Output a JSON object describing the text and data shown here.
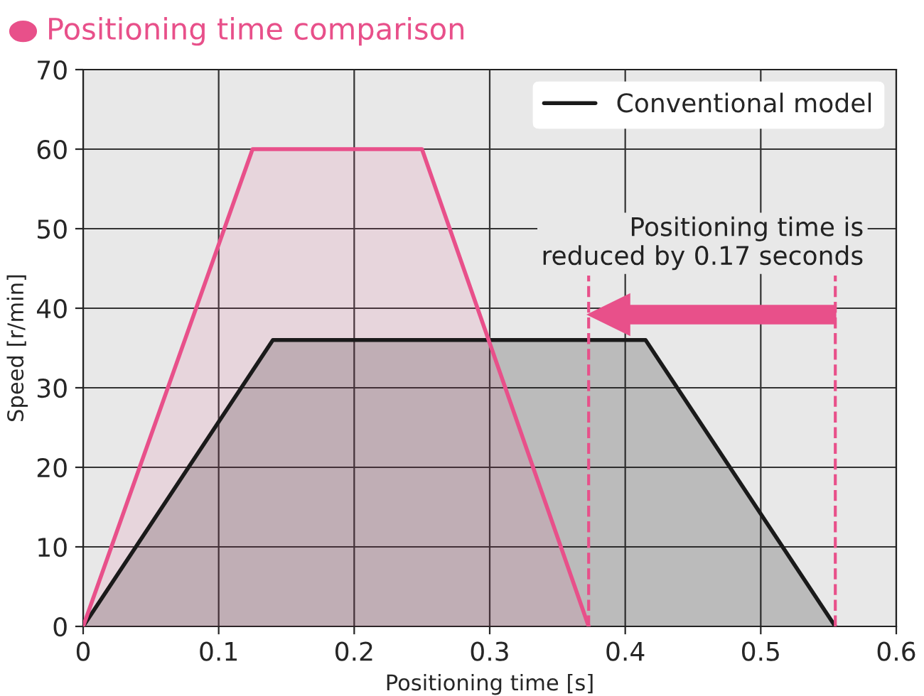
{
  "chart_data": {
    "type": "area",
    "title": "Positioning time comparison",
    "xlabel": "Positioning time [s]",
    "ylabel": "Speed [r/min]",
    "xlim": [
      0,
      0.6
    ],
    "ylim": [
      0,
      70
    ],
    "xticks": [
      0,
      0.1,
      0.2,
      0.3,
      0.4,
      0.5,
      0.6
    ],
    "yticks": [
      0,
      10,
      20,
      30,
      40,
      50,
      60,
      70
    ],
    "grid": true,
    "legend": "top right",
    "series": [
      {
        "name": "Conventional model",
        "color": "#1a1a1a",
        "x": [
          0,
          0.14,
          0.415,
          0.555
        ],
        "values": [
          0,
          36,
          36,
          0
        ]
      },
      {
        "color": "#e8508a",
        "x": [
          0,
          0.125,
          0.25,
          0.373
        ],
        "values": [
          0,
          60,
          60,
          0
        ]
      }
    ],
    "ref_lines": [
      {
        "axis": "x",
        "value": 0.373,
        "color": "#e8508a",
        "line_style": "dashed"
      },
      {
        "axis": "x",
        "value": 0.555,
        "color": "#e8508a",
        "line_style": "dashed"
      }
    ],
    "annotations": [
      "Positioning time is\nreduced by 0.17 seconds"
    ]
  }
}
